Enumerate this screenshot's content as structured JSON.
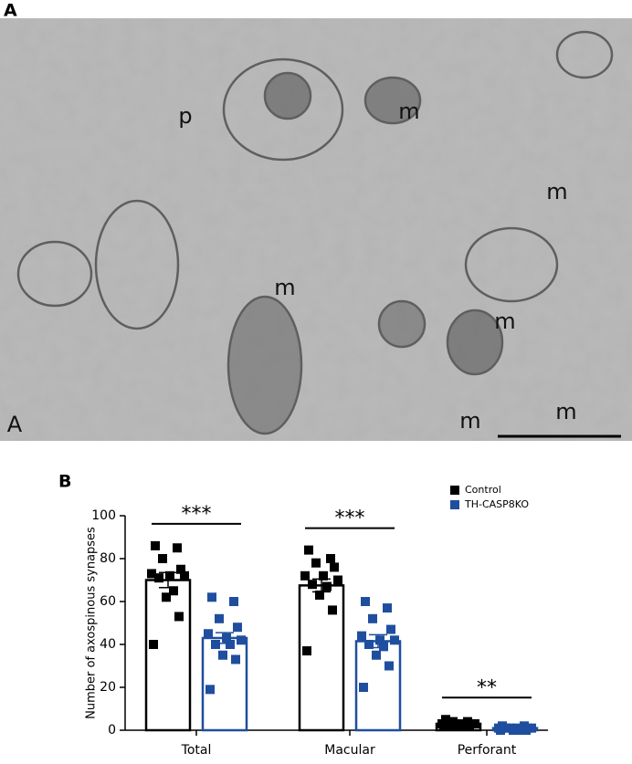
{
  "panel_labels": [
    "A",
    "B"
  ],
  "image_labels": [
    "p",
    "m",
    "m",
    "m",
    "m",
    "A",
    "m",
    "m"
  ],
  "chart_data": {
    "type": "bar",
    "ylabel": "Number of axospinous synapses",
    "categories": [
      "Total",
      "Macular",
      "Perforant"
    ],
    "series": [
      {
        "name": "Control",
        "color": "#000000",
        "values": [
          70,
          67.5,
          3
        ],
        "errors": [
          3.5,
          3,
          0.5
        ],
        "points": [
          [
            86,
            85,
            80,
            75,
            73,
            72,
            72,
            71,
            65,
            62,
            53,
            40
          ],
          [
            84,
            80,
            78,
            76,
            72,
            72,
            70,
            68,
            67,
            63,
            56,
            37
          ],
          [
            5,
            4,
            4,
            3,
            3,
            3,
            3,
            2,
            2,
            2,
            2,
            2
          ]
        ]
      },
      {
        "name": "TH-CASP8KO",
        "color": "#1f4e9e",
        "values": [
          43,
          41.5,
          1
        ],
        "errors": [
          2.5,
          3,
          0.3
        ],
        "points": [
          [
            62,
            60,
            52,
            48,
            45,
            43,
            42,
            40,
            40,
            35,
            33,
            19
          ],
          [
            60,
            57,
            52,
            47,
            44,
            42,
            42,
            40,
            39,
            35,
            30,
            20
          ],
          [
            2,
            2,
            1,
            1,
            1,
            1,
            1,
            1,
            0,
            0,
            0,
            0
          ]
        ]
      }
    ],
    "annotations": [
      {
        "category": 0,
        "text": "***"
      },
      {
        "category": 1,
        "text": "***"
      },
      {
        "category": 2,
        "text": "**"
      }
    ],
    "ylim": [
      0,
      100
    ],
    "yticks": [
      0,
      20,
      40,
      60,
      80,
      100
    ],
    "legend": "upper right"
  }
}
